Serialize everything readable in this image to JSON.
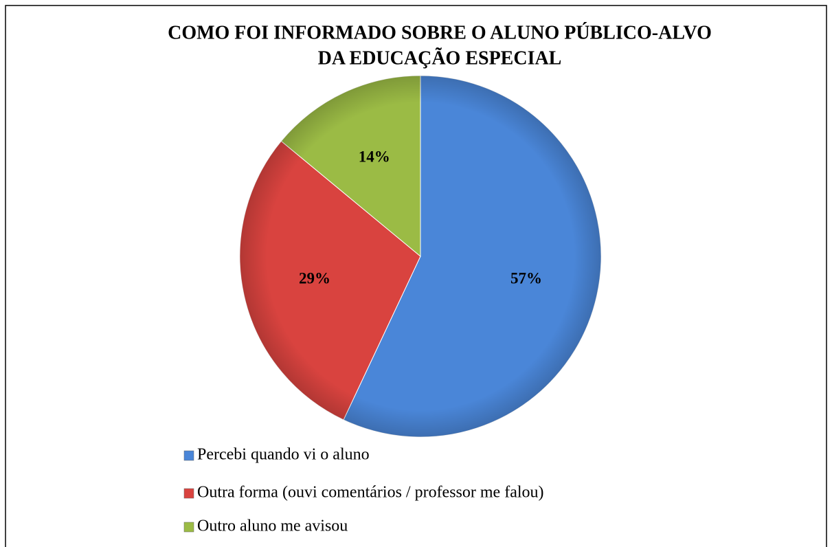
{
  "chart_data": {
    "type": "pie",
    "title": [
      "COMO FOI INFORMADO SOBRE O ALUNO  PÚBLICO-ALVO",
      "DA  EDUCAÇÃO  ESPECIAL"
    ],
    "categories": [
      "Percebi quando vi o aluno",
      "Outra forma (ouvi comentários /  professor me falou)",
      "Outro aluno me avisou"
    ],
    "values": [
      57,
      29,
      14
    ],
    "value_labels": [
      "57%",
      "29%",
      "14%"
    ],
    "colors": [
      "#4a86d8",
      "#d9433f",
      "#9bbb45"
    ],
    "legend": "bottom"
  }
}
